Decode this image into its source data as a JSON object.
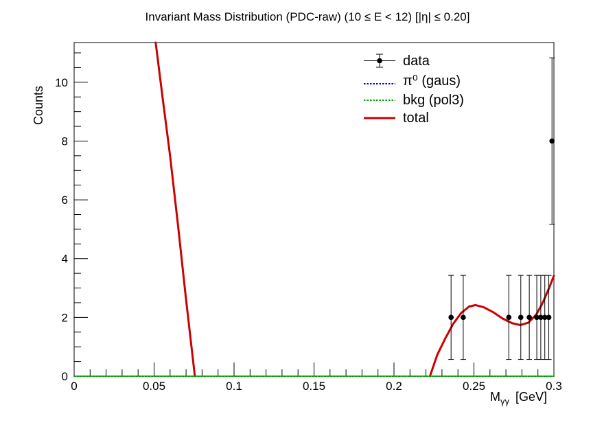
{
  "chart_data": {
    "type": "scatter",
    "title": "Invariant Mass Distribution (PDC-raw)   (10 ≤ E < 12)   [|η| ≤ 0.20]",
    "xlabel_main": "M",
    "xlabel_sub": "γγ",
    "xlabel_unit": "[GeV]",
    "ylabel": "Counts",
    "xlim": [
      0,
      0.3
    ],
    "ylim": [
      0,
      11.35
    ],
    "x_ticks": [
      {
        "value": 0,
        "label": "0"
      },
      {
        "value": 0.05,
        "label": "0.05"
      },
      {
        "value": 0.1,
        "label": "0.1"
      },
      {
        "value": 0.15,
        "label": "0.15"
      },
      {
        "value": 0.2,
        "label": "0.2"
      },
      {
        "value": 0.25,
        "label": "0.25"
      },
      {
        "value": 0.3,
        "label": "0.3"
      }
    ],
    "y_ticks": [
      {
        "value": 0,
        "label": "0"
      },
      {
        "value": 2,
        "label": "2"
      },
      {
        "value": 4,
        "label": "4"
      },
      {
        "value": 6,
        "label": "6"
      },
      {
        "value": 8,
        "label": "8"
      },
      {
        "value": 10,
        "label": "10"
      }
    ],
    "grid": false,
    "legend_position": "top-right",
    "legend": [
      {
        "label": "data",
        "style": "marker"
      },
      {
        "label": "π⁰ (gaus)",
        "style": "dotted",
        "color": "#0000cc"
      },
      {
        "label": "bkg (pol3)",
        "style": "dotted",
        "color": "#00a000"
      },
      {
        "label": "total",
        "style": "solid",
        "color": "#cc0000"
      }
    ],
    "series": [
      {
        "name": "data",
        "color": "#000000",
        "points": [
          {
            "x": 0.2357,
            "y": 2,
            "err_low": 1.43,
            "err_high": 1.43
          },
          {
            "x": 0.2433,
            "y": 2,
            "err_low": 1.43,
            "err_high": 1.43
          },
          {
            "x": 0.2718,
            "y": 2,
            "err_low": 1.43,
            "err_high": 1.43
          },
          {
            "x": 0.2793,
            "y": 2,
            "err_low": 1.43,
            "err_high": 1.43
          },
          {
            "x": 0.2846,
            "y": 2,
            "err_low": 1.43,
            "err_high": 1.43
          },
          {
            "x": 0.2893,
            "y": 2,
            "err_low": 1.43,
            "err_high": 1.43
          },
          {
            "x": 0.2918,
            "y": 2,
            "err_low": 1.43,
            "err_high": 1.43
          },
          {
            "x": 0.2943,
            "y": 2,
            "err_low": 1.43,
            "err_high": 1.43
          },
          {
            "x": 0.2968,
            "y": 2,
            "err_low": 1.43,
            "err_high": 1.43
          },
          {
            "x": 0.2988,
            "y": 8,
            "err_low": 2.83,
            "err_high": 2.83
          }
        ]
      },
      {
        "name": "total",
        "color": "#cc0000",
        "segments": [
          [
            [
              0.051,
              11.35
            ],
            [
              0.055,
              9.6
            ],
            [
              0.06,
              7.5
            ],
            [
              0.065,
              5.1
            ],
            [
              0.07,
              2.6
            ],
            [
              0.0755,
              0
            ]
          ],
          [
            [
              0.2225,
              0
            ],
            [
              0.227,
              0.72
            ],
            [
              0.232,
              1.28
            ],
            [
              0.237,
              1.78
            ],
            [
              0.242,
              2.15
            ],
            [
              0.247,
              2.37
            ],
            [
              0.251,
              2.42
            ],
            [
              0.256,
              2.35
            ],
            [
              0.262,
              2.18
            ],
            [
              0.268,
              1.96
            ],
            [
              0.274,
              1.8
            ],
            [
              0.279,
              1.74
            ],
            [
              0.284,
              1.82
            ],
            [
              0.289,
              2.1
            ],
            [
              0.293,
              2.5
            ],
            [
              0.297,
              3.0
            ],
            [
              0.3,
              3.42
            ]
          ]
        ]
      },
      {
        "name": "bkg (pol3)",
        "color": "#00a000",
        "segments": [
          [
            [
              0,
              0
            ],
            [
              0.3,
              0
            ]
          ]
        ]
      }
    ]
  }
}
